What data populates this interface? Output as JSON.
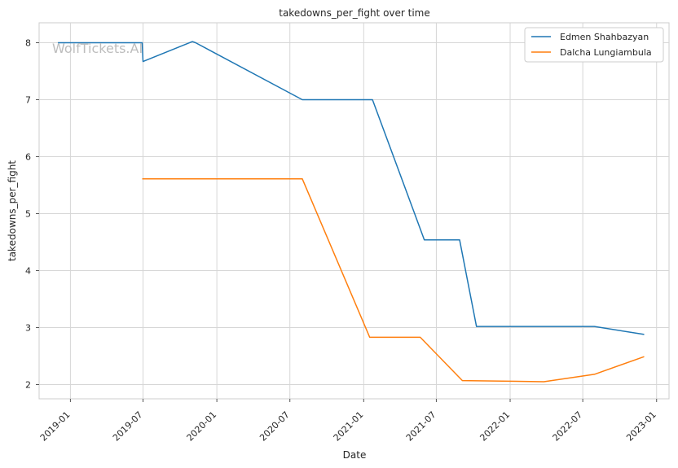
{
  "chart_data": {
    "type": "line",
    "title": "takedowns_per_fight over time",
    "xlabel": "Date",
    "ylabel": "takedowns_per_fight",
    "watermark": "WolfTickets.AI",
    "xlim": [
      "2018-10-15",
      "2023-02-01"
    ],
    "ylim": [
      1.75,
      8.35
    ],
    "x_ticks": [
      "2019-01",
      "2019-07",
      "2020-01",
      "2020-07",
      "2021-01",
      "2021-07",
      "2022-01",
      "2022-07",
      "2023-01"
    ],
    "y_ticks": [
      2,
      3,
      4,
      5,
      6,
      7,
      8
    ],
    "grid": true,
    "legend_position": "top-right",
    "series": [
      {
        "name": "Edmen Shahbazyan",
        "color": "#1f77b4",
        "points": [
          [
            "2018-12-01",
            8.0
          ],
          [
            "2019-06-29",
            8.0
          ],
          [
            "2019-07-01",
            7.67
          ],
          [
            "2019-11-01",
            8.02
          ],
          [
            "2019-11-09",
            8.0
          ],
          [
            "2020-08-01",
            7.0
          ],
          [
            "2021-01-23",
            7.0
          ],
          [
            "2021-06-01",
            4.54
          ],
          [
            "2021-08-28",
            4.54
          ],
          [
            "2021-10-09",
            3.02
          ],
          [
            "2022-07-30",
            3.02
          ],
          [
            "2022-12-01",
            2.88
          ]
        ]
      },
      {
        "name": "Dalcha Lungiambula",
        "color": "#ff7f0e",
        "points": [
          [
            "2019-06-29",
            5.61
          ],
          [
            "2020-08-01",
            5.61
          ],
          [
            "2021-01-16",
            2.83
          ],
          [
            "2021-05-22",
            2.83
          ],
          [
            "2021-09-04",
            2.07
          ],
          [
            "2022-03-26",
            2.05
          ],
          [
            "2022-07-30",
            2.18
          ],
          [
            "2022-12-01",
            2.49
          ]
        ]
      }
    ]
  }
}
